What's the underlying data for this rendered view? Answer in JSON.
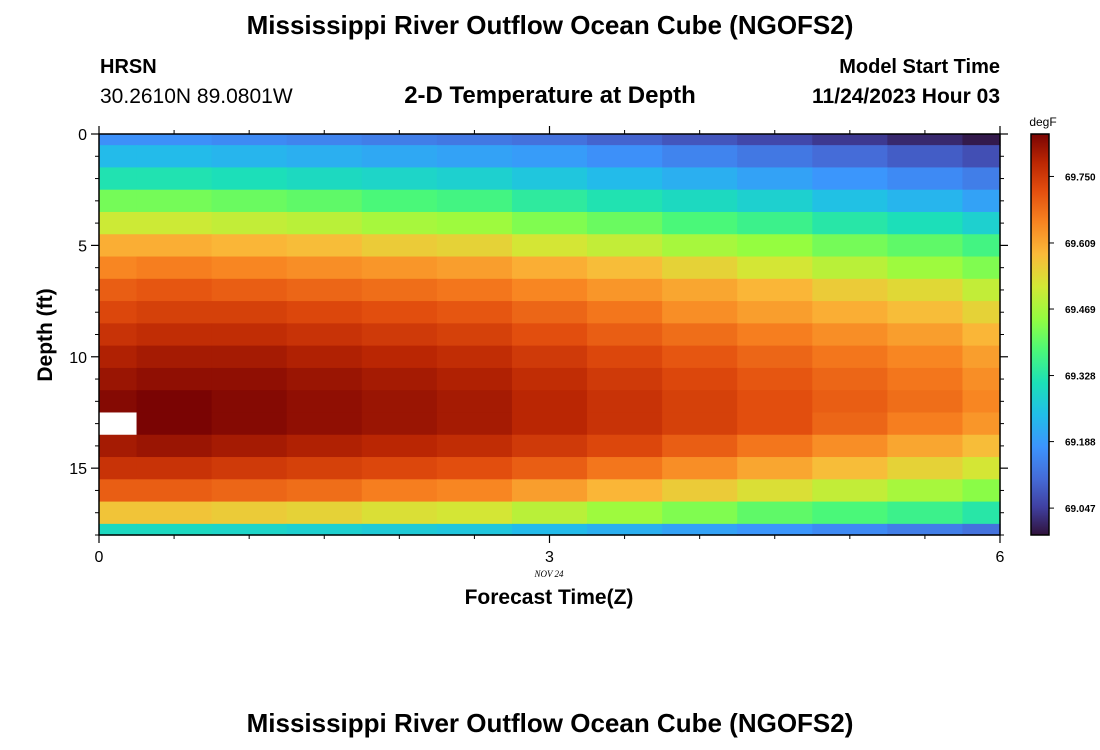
{
  "header": {
    "title": "Mississippi River Outflow Ocean Cube (NGOFS2)",
    "station_name": "HRSN",
    "station_coords": "30.2610N  89.0801W",
    "plot_subtitle": "2-D Temperature at Depth",
    "model_start_label": "Model Start Time",
    "model_start_value": "11/24/2023 Hour 03"
  },
  "footer": {
    "title": "Mississippi River Outflow Ocean Cube (NGOFS2)"
  },
  "chart_data": {
    "type": "heatmap",
    "title": "2-D Temperature at Depth",
    "xlabel": "Forecast Time(Z)",
    "ylabel": "Depth (ft)",
    "x_date_label": "NOV 24",
    "xlim": [
      0,
      6
    ],
    "ylim": [
      18,
      0
    ],
    "x_ticks": [
      "0",
      "3",
      "6"
    ],
    "y_ticks": [
      "0",
      "5",
      "10",
      "15"
    ],
    "x": [
      0,
      0.5,
      1,
      1.5,
      2,
      2.5,
      3,
      3.5,
      4,
      4.5,
      5,
      5.5,
      6
    ],
    "depths": [
      0,
      1,
      2,
      3,
      4,
      5,
      6,
      7,
      8,
      9,
      10,
      11,
      12,
      13,
      14,
      15,
      16,
      17,
      18
    ],
    "colorbar": {
      "unit": "degF",
      "min": 68.99,
      "max": 69.84,
      "ticks": [
        "69.047",
        "69.188",
        "69.328",
        "69.469",
        "69.609",
        "69.750"
      ]
    },
    "values": [
      [
        69.17,
        69.17,
        69.16,
        69.15,
        69.14,
        69.13,
        69.12,
        69.1,
        69.08,
        69.06,
        69.04,
        69.02,
        69.0
      ],
      [
        69.24,
        69.24,
        69.23,
        69.22,
        69.21,
        69.2,
        69.19,
        69.17,
        69.15,
        69.13,
        69.11,
        69.09,
        69.07
      ],
      [
        69.32,
        69.32,
        69.31,
        69.3,
        69.29,
        69.28,
        69.26,
        69.24,
        69.22,
        69.2,
        69.18,
        69.16,
        69.14
      ],
      [
        69.42,
        69.42,
        69.41,
        69.4,
        69.38,
        69.37,
        69.34,
        69.32,
        69.3,
        69.28,
        69.25,
        69.23,
        69.2
      ],
      [
        69.51,
        69.51,
        69.5,
        69.49,
        69.47,
        69.46,
        69.43,
        69.41,
        69.38,
        69.36,
        69.33,
        69.31,
        69.28
      ],
      [
        69.6,
        69.6,
        69.59,
        69.58,
        69.56,
        69.55,
        69.52,
        69.5,
        69.47,
        69.45,
        69.42,
        69.4,
        69.37
      ],
      [
        69.65,
        69.66,
        69.65,
        69.64,
        69.63,
        69.62,
        69.6,
        69.58,
        69.55,
        69.52,
        69.49,
        69.46,
        69.43
      ],
      [
        69.7,
        69.71,
        69.7,
        69.69,
        69.68,
        69.67,
        69.65,
        69.63,
        69.61,
        69.59,
        69.56,
        69.54,
        69.5
      ],
      [
        69.73,
        69.74,
        69.74,
        69.73,
        69.72,
        69.71,
        69.69,
        69.67,
        69.64,
        69.62,
        69.6,
        69.58,
        69.55
      ],
      [
        69.76,
        69.77,
        69.77,
        69.76,
        69.75,
        69.74,
        69.72,
        69.7,
        69.68,
        69.66,
        69.64,
        69.62,
        69.59
      ],
      [
        69.79,
        69.8,
        69.8,
        69.79,
        69.78,
        69.77,
        69.75,
        69.73,
        69.71,
        69.69,
        69.67,
        69.65,
        69.62
      ],
      [
        69.81,
        69.82,
        69.82,
        69.81,
        69.8,
        69.79,
        69.77,
        69.75,
        69.73,
        69.71,
        69.69,
        69.67,
        69.64
      ],
      [
        69.83,
        69.84,
        69.83,
        69.82,
        69.81,
        69.8,
        69.78,
        69.76,
        69.74,
        69.72,
        69.7,
        69.68,
        69.65
      ],
      [
        null,
        69.84,
        69.83,
        69.82,
        69.81,
        69.8,
        69.78,
        69.76,
        69.74,
        69.72,
        69.69,
        69.66,
        69.63
      ],
      [
        69.8,
        69.81,
        69.8,
        69.79,
        69.78,
        69.77,
        69.75,
        69.73,
        69.7,
        69.67,
        69.64,
        69.61,
        69.58
      ],
      [
        69.76,
        69.76,
        69.75,
        69.74,
        69.73,
        69.72,
        69.7,
        69.67,
        69.64,
        69.61,
        69.58,
        69.55,
        69.52
      ],
      [
        69.7,
        69.7,
        69.69,
        69.68,
        69.66,
        69.65,
        69.62,
        69.59,
        69.56,
        69.53,
        69.5,
        69.47,
        69.44
      ],
      [
        69.57,
        69.57,
        69.56,
        69.55,
        69.53,
        69.52,
        69.49,
        69.46,
        69.43,
        69.4,
        69.38,
        69.36,
        69.33
      ],
      [
        69.3,
        69.3,
        69.29,
        69.28,
        69.27,
        69.26,
        69.24,
        69.22,
        69.2,
        69.18,
        69.16,
        69.14,
        69.12
      ]
    ]
  }
}
